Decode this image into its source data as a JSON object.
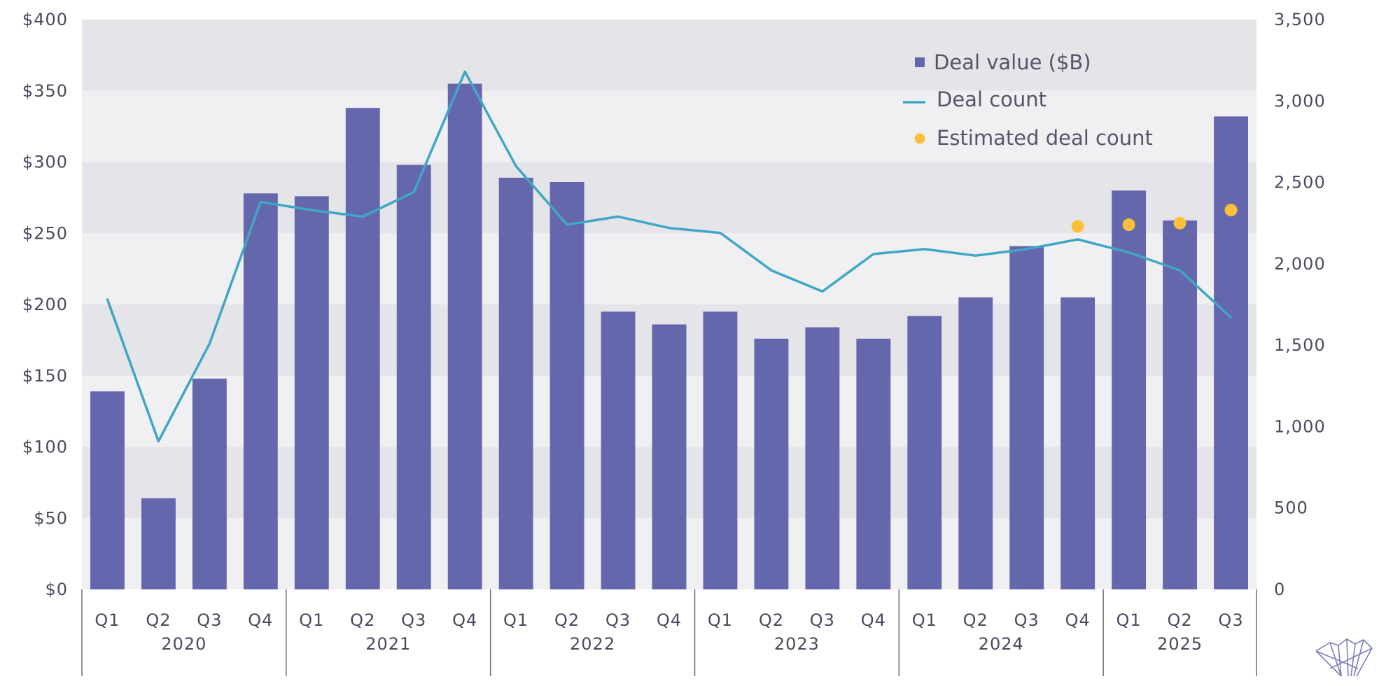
{
  "chart_data": {
    "type": "bar",
    "categories": [
      "Q1",
      "Q2",
      "Q3",
      "Q4",
      "Q1",
      "Q2",
      "Q3",
      "Q4",
      "Q1",
      "Q2",
      "Q3",
      "Q4",
      "Q1",
      "Q2",
      "Q3",
      "Q4",
      "Q1",
      "Q2",
      "Q3",
      "Q4",
      "Q1",
      "Q2",
      "Q3"
    ],
    "years": [
      {
        "label": "2020",
        "count": 4
      },
      {
        "label": "2021",
        "count": 4
      },
      {
        "label": "2022",
        "count": 4
      },
      {
        "label": "2023",
        "count": 4
      },
      {
        "label": "2024",
        "count": 4
      },
      {
        "label": "2025",
        "count": 3
      }
    ],
    "series": [
      {
        "name": "Deal value ($B)",
        "type": "bar",
        "axis": "left",
        "color": "#6567ad",
        "values": [
          139,
          64,
          148,
          278,
          276,
          338,
          298,
          355,
          289,
          286,
          195,
          186,
          195,
          176,
          184,
          176,
          192,
          205,
          241,
          205,
          280,
          259,
          332
        ]
      },
      {
        "name": "Deal count",
        "type": "line",
        "axis": "right",
        "color": "#3fa7c4",
        "values": [
          1780,
          910,
          1510,
          2380,
          2330,
          2290,
          2440,
          3180,
          2600,
          2240,
          2290,
          2220,
          2190,
          1960,
          1830,
          2060,
          2090,
          2050,
          2090,
          2150,
          2070,
          1960,
          1670
        ]
      },
      {
        "name": "Estimated deal count",
        "type": "scatter",
        "axis": "right",
        "color": "#fbbf3a",
        "points": [
          {
            "index": 19,
            "value": 2230
          },
          {
            "index": 20,
            "value": 2240
          },
          {
            "index": 21,
            "value": 2250
          },
          {
            "index": 22,
            "value": 2330
          }
        ]
      }
    ],
    "y_left": {
      "min": 0,
      "max": 400,
      "ticks": [
        "$0",
        "$50",
        "$100",
        "$150",
        "$200",
        "$250",
        "$300",
        "$350",
        "$400"
      ]
    },
    "y_right": {
      "min": 0,
      "max": 3500,
      "ticks": [
        "0",
        "500",
        "1,000",
        "1,500",
        "2,000",
        "2,500",
        "3,000",
        "3,500"
      ]
    },
    "legend_position": "top-right",
    "band_colors": [
      "#f0f0f3",
      "#e4e4e9"
    ]
  }
}
